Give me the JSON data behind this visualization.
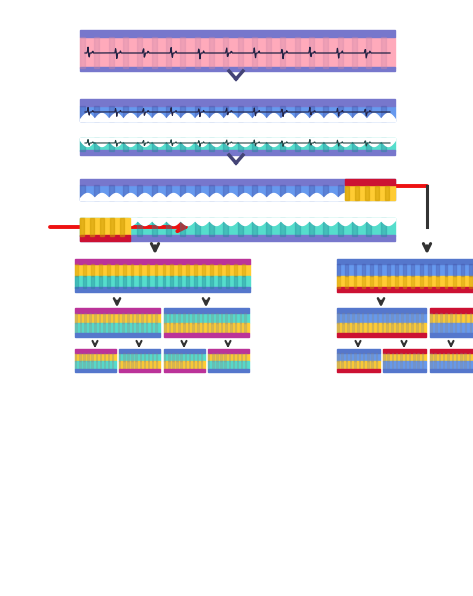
{
  "bg": "#ffffff",
  "purple": "#7777cc",
  "pink": "#ffaabb",
  "blue": "#6699ee",
  "blue_dark": "#5577cc",
  "cyan": "#55ddcc",
  "cyan_dark": "#44bbaa",
  "yellow": "#ffcc33",
  "yellow_dark": "#cc9900",
  "red": "#ee1111",
  "dark": "#333333",
  "dark_red": "#cc1133",
  "white": "#ffffff",
  "gray_stripe": "#8899aa",
  "stripe_blue": "#4455aa",
  "stripe_cyan": "#228899",
  "stripe_pink": "#cc88aa"
}
